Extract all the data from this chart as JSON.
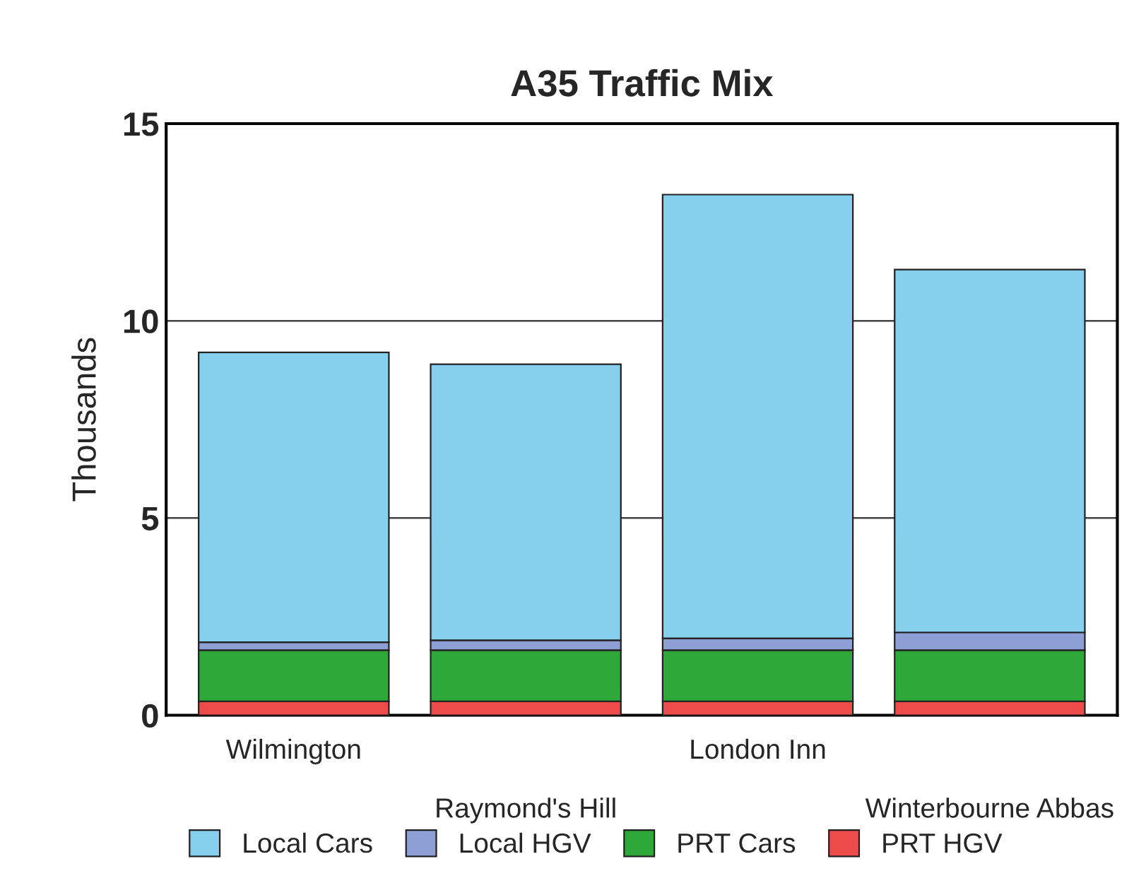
{
  "chart_data": {
    "type": "bar",
    "title": "A35 Traffic Mix",
    "ylabel": "Thousands",
    "stacked": true,
    "categories": [
      "Wilmington",
      "Raymond's Hill",
      "London Inn",
      "Winterbourne Abbas"
    ],
    "series": [
      {
        "name": "PRT HGV",
        "color": "#ee4b4b",
        "values": [
          0.35,
          0.35,
          0.35,
          0.35
        ]
      },
      {
        "name": "PRT Cars",
        "color": "#2fa83a",
        "values": [
          1.3,
          1.3,
          1.3,
          1.3
        ]
      },
      {
        "name": "Local HGV",
        "color": "#8e9fd6",
        "values": [
          0.2,
          0.25,
          0.3,
          0.45
        ]
      },
      {
        "name": "Local Cars",
        "color": "#86d0ee",
        "values": [
          7.35,
          7.0,
          11.25,
          9.2
        ]
      }
    ],
    "ylim": [
      0,
      15
    ],
    "yticks": [
      0,
      5,
      10,
      15
    ],
    "grid": "y",
    "legend": "bottom"
  }
}
